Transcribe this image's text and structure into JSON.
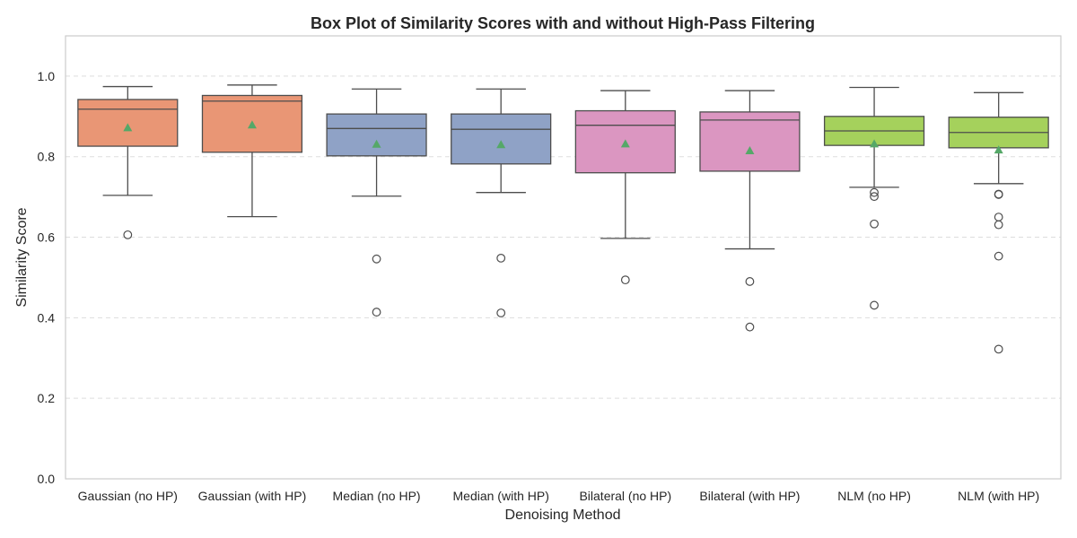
{
  "chart_data": {
    "type": "box",
    "title": "Box Plot of Similarity Scores with and without High-Pass Filtering",
    "xlabel": "Denoising Method",
    "ylabel": "Similarity Score",
    "ylim": [
      0.0,
      1.1
    ],
    "yticks": [
      "0.0",
      "0.2",
      "0.4",
      "0.6",
      "0.8",
      "1.0"
    ],
    "grid": "y-dashed",
    "mean_marker": "triangle",
    "mean_color": "#55a868",
    "categories": [
      "Gaussian (no HP)",
      "Gaussian (with HP)",
      "Median (no HP)",
      "Median (with HP)",
      "Bilateral (no HP)",
      "Bilateral (with HP)",
      "NLM (no HP)",
      "NLM (with HP)"
    ],
    "colors": [
      "#e99675",
      "#e99675",
      "#8fa2c6",
      "#8fa2c6",
      "#db96c1",
      "#db96c1",
      "#a5d15c",
      "#a5d15c"
    ],
    "boxes": [
      {
        "whisker_low": 0.704,
        "q1": 0.826,
        "median": 0.918,
        "q3": 0.942,
        "whisker_high": 0.974,
        "mean": 0.872,
        "outliers": [
          0.606
        ]
      },
      {
        "whisker_low": 0.651,
        "q1": 0.811,
        "median": 0.938,
        "q3": 0.952,
        "whisker_high": 0.978,
        "mean": 0.879,
        "outliers": []
      },
      {
        "whisker_low": 0.702,
        "q1": 0.802,
        "median": 0.87,
        "q3": 0.906,
        "whisker_high": 0.968,
        "mean": 0.831,
        "outliers": [
          0.546,
          0.414
        ]
      },
      {
        "whisker_low": 0.711,
        "q1": 0.782,
        "median": 0.868,
        "q3": 0.906,
        "whisker_high": 0.968,
        "mean": 0.83,
        "outliers": [
          0.548,
          0.412
        ]
      },
      {
        "whisker_low": 0.597,
        "q1": 0.76,
        "median": 0.878,
        "q3": 0.914,
        "whisker_high": 0.964,
        "mean": 0.832,
        "outliers": [
          0.494
        ]
      },
      {
        "whisker_low": 0.571,
        "q1": 0.764,
        "median": 0.891,
        "q3": 0.911,
        "whisker_high": 0.964,
        "mean": 0.815,
        "outliers": [
          0.49,
          0.377
        ]
      },
      {
        "whisker_low": 0.724,
        "q1": 0.828,
        "median": 0.864,
        "q3": 0.9,
        "whisker_high": 0.972,
        "mean": 0.832,
        "outliers": [
          0.711,
          0.701,
          0.633,
          0.431
        ]
      },
      {
        "whisker_low": 0.733,
        "q1": 0.822,
        "median": 0.86,
        "q3": 0.898,
        "whisker_high": 0.959,
        "mean": 0.817,
        "outliers": [
          0.707,
          0.706,
          0.65,
          0.631,
          0.553,
          0.322
        ]
      }
    ]
  }
}
